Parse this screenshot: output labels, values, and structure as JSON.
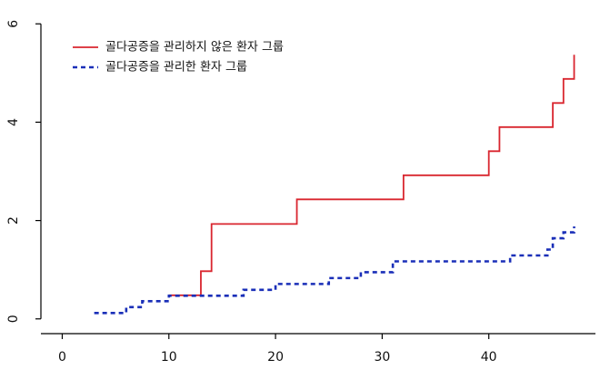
{
  "chart_data": {
    "type": "line",
    "step": true,
    "xlim": [
      -2,
      50
    ],
    "ylim": [
      -0.3,
      6.3
    ],
    "x_ticks": [
      0,
      10,
      20,
      30,
      40
    ],
    "y_ticks": [
      0,
      2,
      4,
      6
    ],
    "x_tick_labels": [
      "0",
      "10",
      "20",
      "30",
      "40"
    ],
    "y_tick_labels": [
      "0",
      "2",
      "4",
      "6"
    ],
    "grid": false,
    "legend_position": "top-left",
    "series": [
      {
        "name": "골다공증을 관리하지 않은 환자 그룹",
        "color": "#d9262f",
        "line_style": "solid",
        "x": [
          10,
          13,
          14,
          22,
          32,
          40,
          41,
          46,
          47,
          48
        ],
        "y": [
          0.48,
          0.97,
          1.93,
          2.43,
          2.92,
          3.41,
          3.9,
          4.39,
          4.88,
          5.37
        ]
      },
      {
        "name": "골다공증을 관리한 환자 그룹",
        "color": "#1a2fb8",
        "line_style": "dotted",
        "x": [
          3,
          6,
          7.5,
          10,
          17,
          20,
          25,
          28,
          31,
          42,
          45.5,
          46,
          47,
          48
        ],
        "y": [
          0.12,
          0.24,
          0.36,
          0.47,
          0.59,
          0.71,
          0.83,
          0.95,
          1.17,
          1.29,
          1.41,
          1.64,
          1.76,
          1.88
        ]
      }
    ]
  }
}
